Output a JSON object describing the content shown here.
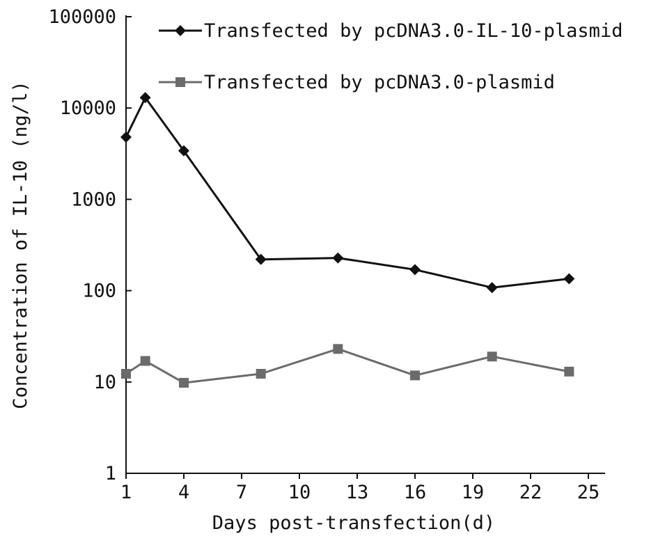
{
  "chart_data": {
    "type": "line",
    "xlabel": "Days post-transfection(d)",
    "ylabel": "Concentration of IL-10 (ng/l)",
    "yscale": "log",
    "ylim": [
      1,
      100000
    ],
    "xlim": [
      1,
      25
    ],
    "xticks": [
      "1",
      "4",
      "7",
      "10",
      "13",
      "16",
      "19",
      "22",
      "25"
    ],
    "yticks": [
      "1",
      "10",
      "100",
      "1000",
      "10000",
      "100000"
    ],
    "grid": false,
    "legend_position": "top-right",
    "series": [
      {
        "name": "Transfected by pcDNA3.0-IL-10-plasmid",
        "color": "#111111",
        "marker": "diamond",
        "x": [
          1,
          2,
          4,
          8,
          12,
          16,
          20,
          24
        ],
        "y": [
          4800,
          13000,
          3400,
          220,
          228,
          170,
          108,
          135
        ]
      },
      {
        "name": "Transfected by pcDNA3.0-plasmid",
        "color": "#6b6b6b",
        "marker": "square",
        "x": [
          1,
          2,
          4,
          8,
          12,
          16,
          20,
          24
        ],
        "y": [
          12.3,
          17,
          9.8,
          12.3,
          23,
          11.8,
          19,
          13
        ]
      }
    ]
  }
}
